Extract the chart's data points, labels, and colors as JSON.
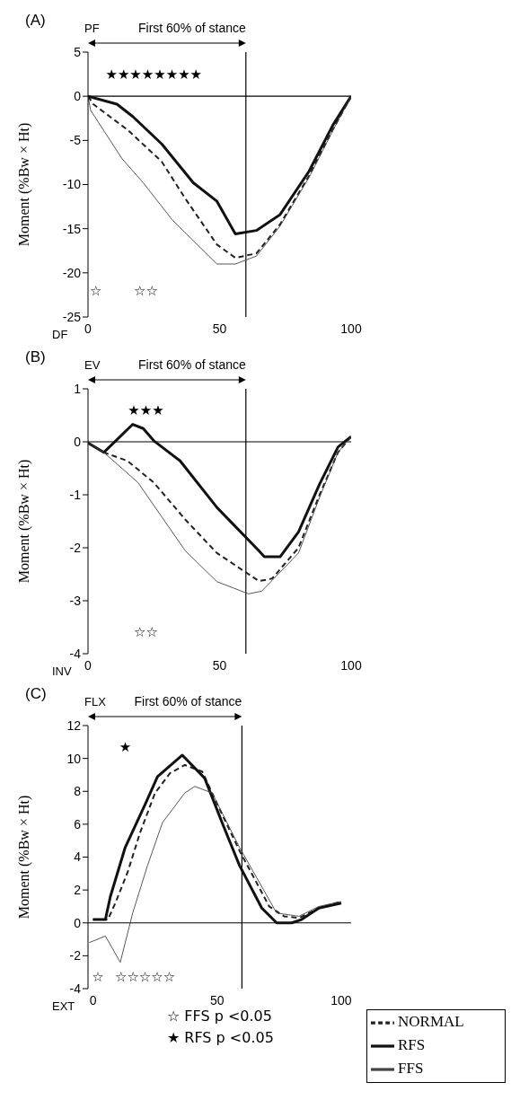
{
  "chart_data": [
    {
      "type": "line",
      "title": "(A)",
      "ylabel": "Moment (%Bw × Ht)",
      "xlim": [
        0,
        100
      ],
      "xticks": [
        0,
        50,
        100
      ],
      "ylim": [
        -25,
        5
      ],
      "yticks": [
        -25,
        -20,
        -15,
        -10,
        -5,
        0,
        5
      ],
      "series": [
        {
          "color": "#222222",
          "line_style": "dashed",
          "x": [
            0,
            2,
            15,
            28,
            37,
            49,
            56,
            64,
            73,
            84,
            93,
            100
          ],
          "values": [
            0,
            -0.9,
            -3.8,
            -7.4,
            -11.6,
            -16.8,
            -18.3,
            -17.8,
            -14.5,
            -9,
            -3.8,
            0
          ]
        },
        {
          "color": "#111111",
          "line_style": "solid",
          "x": [
            0,
            11,
            17,
            28,
            40,
            49,
            56,
            64,
            73,
            84,
            93,
            100
          ],
          "values": [
            0,
            -0.9,
            -2.3,
            -5.4,
            -9.8,
            -11.9,
            -15.6,
            -15.2,
            -13.4,
            -8.5,
            -3.3,
            0
          ]
        },
        {
          "color": "#444444",
          "line_style": "solid",
          "x": [
            0,
            1,
            13,
            21,
            32,
            49,
            56,
            64,
            73,
            84,
            93,
            100
          ],
          "values": [
            0,
            -1.6,
            -7.1,
            -9.8,
            -14,
            -19,
            -19,
            -18.1,
            -14.7,
            -9.2,
            -3.9,
            0
          ]
        }
      ],
      "ref_lines": [
        {
          "axis": "x",
          "value": 60,
          "label": "First 60% of stance",
          "color": "#000000"
        },
        {
          "axis": "y",
          "value": 0,
          "color": "#000000"
        }
      ],
      "annotations": [
        "PF",
        "DF",
        "★★★★★★★★",
        "☆",
        "☆☆"
      ]
    },
    {
      "type": "line",
      "title": "(B)",
      "ylabel": "Moment (%Bw × Ht)",
      "xlim": [
        0,
        100
      ],
      "xticks": [
        0,
        50,
        100
      ],
      "ylim": [
        -4,
        1
      ],
      "yticks": [
        -4,
        -3,
        -2,
        -1,
        0,
        1
      ],
      "series": [
        {
          "color": "#222222",
          "line_style": "dashed",
          "x": [
            0,
            6,
            15,
            25,
            37,
            49,
            65,
            70,
            80,
            88,
            95,
            100
          ],
          "values": [
            -0.02,
            -0.2,
            -0.36,
            -0.77,
            -1.47,
            -2.1,
            -2.63,
            -2.58,
            -2,
            -1,
            -0.2,
            0.1
          ]
        },
        {
          "color": "#111111",
          "line_style": "solid",
          "x": [
            0,
            6,
            17,
            21,
            25,
            35,
            49,
            65,
            67,
            73,
            80,
            88,
            95,
            100
          ],
          "values": [
            -0.02,
            -0.2,
            0.33,
            0.25,
            0.02,
            -0.36,
            -1.24,
            -2.06,
            -2.17,
            -2.17,
            -1.7,
            -0.8,
            -0.1,
            0.1
          ]
        },
        {
          "color": "#444444",
          "line_style": "solid",
          "x": [
            0,
            6,
            19,
            37,
            49,
            61,
            66,
            80,
            88,
            95,
            100
          ],
          "values": [
            -0.02,
            -0.2,
            -0.77,
            -2.06,
            -2.64,
            -2.87,
            -2.82,
            -2.1,
            -1.05,
            -0.2,
            0.1
          ]
        }
      ],
      "ref_lines": [
        {
          "axis": "x",
          "value": 60,
          "label": "First 60% of stance",
          "color": "#000000"
        },
        {
          "axis": "y",
          "value": 0,
          "color": "#000000"
        }
      ],
      "annotations": [
        "EV",
        "INV",
        "★★★",
        "☆☆"
      ]
    },
    {
      "type": "line",
      "title": "(C)",
      "ylabel": "Moment (%Bw × Ht)",
      "xlim": [
        -2,
        104
      ],
      "xticks": [
        0,
        50,
        100
      ],
      "ylim": [
        -4,
        12
      ],
      "yticks": [
        -4,
        -2,
        0,
        2,
        4,
        6,
        8,
        10,
        12
      ],
      "legend": "bottom right",
      "series": [
        {
          "name": "NORMAL",
          "color": "#222222",
          "line_style": "dashed",
          "x": [
            0,
            6,
            9,
            14,
            19,
            25,
            31,
            37,
            44,
            52,
            59,
            71,
            77,
            83,
            91,
            100
          ],
          "values": [
            0.2,
            0.2,
            1.2,
            3.1,
            5.5,
            7.9,
            9.1,
            9.6,
            9.2,
            6.6,
            4.4,
            1,
            0.4,
            0.3,
            0.9,
            1.3
          ]
        },
        {
          "name": "RFS",
          "color": "#111111",
          "line_style": "solid",
          "x": [
            0,
            5,
            7,
            13,
            21,
            26,
            36,
            45,
            52,
            59,
            68,
            74,
            80,
            84,
            91,
            100
          ],
          "values": [
            0.2,
            0.2,
            1.6,
            4.6,
            7.2,
            8.9,
            10.2,
            8.8,
            6.1,
            3.5,
            0.9,
            0,
            0,
            0.2,
            0.9,
            1.2
          ]
        },
        {
          "name": "FFS",
          "color": "#444444",
          "line_style": "solid",
          "x": [
            -1.5,
            5,
            11,
            16,
            22,
            28,
            37,
            41,
            48,
            54,
            59,
            74,
            83,
            91,
            100
          ],
          "values": [
            -1.2,
            -0.8,
            -2.4,
            0.6,
            3.5,
            6.1,
            7.9,
            8.3,
            7.9,
            6.1,
            4.6,
            0.6,
            0.4,
            1,
            1.3
          ]
        }
      ],
      "ref_lines": [
        {
          "axis": "x",
          "value": 60,
          "label": "First 60% of stance",
          "color": "#000000"
        },
        {
          "axis": "y",
          "value": 0,
          "color": "#000000"
        }
      ],
      "annotations": [
        "FLX",
        "EXT",
        "☆ FFS  p <0.05",
        "★ RFS  p <0.05",
        "★",
        "☆",
        "☆☆☆☆☆"
      ]
    }
  ]
}
